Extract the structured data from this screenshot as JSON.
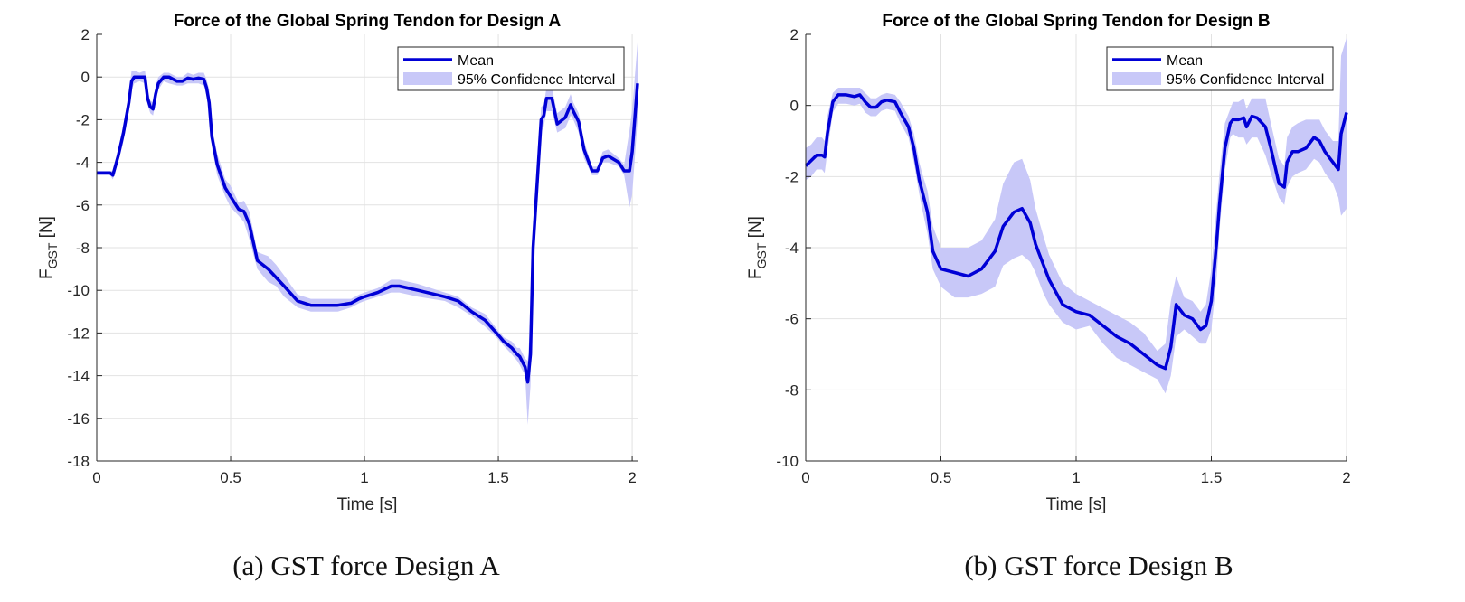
{
  "figure": {
    "caption_a": "(a) GST force Design A",
    "caption_b": "(b) GST force Design B"
  },
  "chart_data": [
    {
      "type": "line",
      "title": "Force of the Global Spring Tendon for Design A",
      "xlabel": "Time [s]",
      "ylabel_main": "F",
      "ylabel_sub": "GST",
      "ylabel_unit": " [N]",
      "xlim": [
        0,
        2.02
      ],
      "ylim": [
        -18,
        2
      ],
      "xticks": [
        0,
        0.5,
        1,
        1.5,
        2
      ],
      "xtick_labels": [
        "0",
        "0.5",
        "1",
        "1.5",
        "2"
      ],
      "yticks": [
        2,
        0,
        -2,
        -4,
        -6,
        -8,
        -10,
        -12,
        -14,
        -16,
        -18
      ],
      "ytick_labels": [
        "2",
        "0",
        "-2",
        "-4",
        "-6",
        "-8",
        "-10",
        "-12",
        "-14",
        "-16",
        "-18"
      ],
      "grid": true,
      "legend": {
        "position": "top-right",
        "entries": [
          "Mean",
          "95% Confidence Interval"
        ]
      },
      "colors": {
        "mean": "#0000d6",
        "ci": "#c8c8f8"
      },
      "series": [
        {
          "name": "Mean",
          "x": [
            0,
            0.05,
            0.06,
            0.08,
            0.1,
            0.12,
            0.13,
            0.14,
            0.16,
            0.18,
            0.19,
            0.2,
            0.21,
            0.22,
            0.23,
            0.25,
            0.27,
            0.3,
            0.32,
            0.34,
            0.36,
            0.38,
            0.4,
            0.41,
            0.42,
            0.43,
            0.45,
            0.48,
            0.5,
            0.53,
            0.55,
            0.57,
            0.6,
            0.62,
            0.64,
            0.67,
            0.7,
            0.75,
            0.8,
            0.85,
            0.9,
            0.95,
            0.98,
            1.0,
            1.05,
            1.1,
            1.13,
            1.2,
            1.3,
            1.35,
            1.4,
            1.45,
            1.5,
            1.52,
            1.55,
            1.57,
            1.58,
            1.6,
            1.61,
            1.62,
            1.63,
            1.66,
            1.67,
            1.68,
            1.7,
            1.72,
            1.75,
            1.77,
            1.78,
            1.8,
            1.82,
            1.85,
            1.87,
            1.89,
            1.91,
            1.95,
            1.97,
            1.99,
            2.0,
            2.02
          ],
          "y": [
            -4.5,
            -4.5,
            -4.6,
            -3.7,
            -2.6,
            -1.2,
            -0.2,
            0.0,
            0.0,
            0.0,
            -1.0,
            -1.4,
            -1.5,
            -0.8,
            -0.3,
            0.0,
            0.0,
            -0.2,
            -0.2,
            -0.05,
            -0.1,
            -0.05,
            -0.1,
            -0.5,
            -1.2,
            -2.8,
            -4.1,
            -5.2,
            -5.6,
            -6.2,
            -6.3,
            -6.9,
            -8.6,
            -8.8,
            -9.0,
            -9.4,
            -9.8,
            -10.5,
            -10.7,
            -10.7,
            -10.7,
            -10.6,
            -10.4,
            -10.3,
            -10.1,
            -9.8,
            -9.8,
            -10.0,
            -10.3,
            -10.5,
            -11.0,
            -11.4,
            -12.1,
            -12.4,
            -12.7,
            -13.0,
            -13.1,
            -13.6,
            -14.3,
            -13.0,
            -8.0,
            -2.0,
            -1.8,
            -1.0,
            -1.0,
            -2.2,
            -1.9,
            -1.3,
            -1.6,
            -2.1,
            -3.4,
            -4.4,
            -4.4,
            -3.8,
            -3.7,
            -4.0,
            -4.4,
            -4.4,
            -3.5,
            -0.3
          ],
          "ci_low": [
            -4.6,
            -4.6,
            -4.8,
            -4.0,
            -3.0,
            -1.6,
            -0.6,
            -0.3,
            -0.2,
            -0.3,
            -1.3,
            -1.7,
            -1.8,
            -1.2,
            -0.6,
            -0.2,
            -0.3,
            -0.4,
            -0.4,
            -0.3,
            -0.3,
            -0.3,
            -0.4,
            -0.9,
            -1.8,
            -3.3,
            -4.6,
            -5.6,
            -6.1,
            -6.5,
            -6.8,
            -7.6,
            -9.0,
            -9.3,
            -9.6,
            -9.8,
            -10.3,
            -10.8,
            -11.0,
            -11.0,
            -11.0,
            -10.8,
            -10.6,
            -10.5,
            -10.3,
            -10.1,
            -10.1,
            -10.3,
            -10.5,
            -10.8,
            -11.2,
            -11.7,
            -12.3,
            -12.6,
            -13.0,
            -13.3,
            -13.5,
            -14.0,
            -16.3,
            -14.5,
            -9.0,
            -2.6,
            -2.3,
            -1.6,
            -1.6,
            -2.6,
            -2.4,
            -1.8,
            -2.0,
            -2.6,
            -3.8,
            -4.6,
            -4.6,
            -4.0,
            -4.0,
            -4.2,
            -4.6,
            -6.1,
            -5.5,
            -2.0
          ],
          "ci_high": [
            -4.4,
            -4.4,
            -4.4,
            -3.4,
            -2.2,
            -0.8,
            0.3,
            0.3,
            0.2,
            0.3,
            -0.6,
            -1.1,
            -1.2,
            -0.4,
            0.0,
            0.2,
            0.2,
            0.0,
            0.0,
            0.2,
            0.1,
            0.2,
            0.2,
            -0.1,
            -0.6,
            -2.3,
            -3.6,
            -4.8,
            -5.1,
            -5.9,
            -5.8,
            -6.3,
            -8.2,
            -8.3,
            -8.4,
            -8.8,
            -9.3,
            -10.2,
            -10.4,
            -10.4,
            -10.4,
            -10.4,
            -10.2,
            -10.1,
            -9.9,
            -9.5,
            -9.5,
            -9.7,
            -10.1,
            -10.3,
            -10.8,
            -11.1,
            -11.9,
            -12.2,
            -12.4,
            -12.7,
            -12.7,
            -13.2,
            -13.3,
            -11.5,
            -7.0,
            -1.4,
            -1.3,
            -0.5,
            -0.5,
            -1.7,
            -1.4,
            -0.8,
            -1.2,
            -1.7,
            -3.0,
            -4.2,
            -4.2,
            -3.5,
            -3.4,
            -3.8,
            -4.1,
            -2.5,
            -1.5,
            1.6
          ]
        }
      ]
    },
    {
      "type": "line",
      "title": "Force of the Global Spring Tendon for Design B",
      "xlabel": "Time [s]",
      "ylabel_main": "F",
      "ylabel_sub": "GST",
      "ylabel_unit": " [N]",
      "xlim": [
        0,
        2
      ],
      "ylim": [
        -10,
        2
      ],
      "xticks": [
        0,
        0.5,
        1,
        1.5,
        2
      ],
      "xtick_labels": [
        "0",
        "0.5",
        "1",
        "1.5",
        "2"
      ],
      "yticks": [
        2,
        0,
        -2,
        -4,
        -6,
        -8,
        -10
      ],
      "ytick_labels": [
        "2",
        "0",
        "-2",
        "-4",
        "-6",
        "-8",
        "-10"
      ],
      "grid": true,
      "legend": {
        "position": "top-right",
        "entries": [
          "Mean",
          "95% Confidence Interval"
        ]
      },
      "colors": {
        "mean": "#0000d6",
        "ci": "#c8c8f8"
      },
      "series": [
        {
          "name": "Mean",
          "x": [
            0,
            0.02,
            0.04,
            0.06,
            0.07,
            0.08,
            0.1,
            0.12,
            0.15,
            0.18,
            0.2,
            0.22,
            0.24,
            0.26,
            0.28,
            0.3,
            0.33,
            0.35,
            0.38,
            0.4,
            0.42,
            0.43,
            0.45,
            0.47,
            0.5,
            0.55,
            0.6,
            0.65,
            0.7,
            0.73,
            0.77,
            0.8,
            0.83,
            0.85,
            0.88,
            0.9,
            0.95,
            1.0,
            1.05,
            1.1,
            1.15,
            1.2,
            1.25,
            1.3,
            1.33,
            1.35,
            1.37,
            1.4,
            1.43,
            1.46,
            1.48,
            1.5,
            1.52,
            1.53,
            1.55,
            1.57,
            1.58,
            1.6,
            1.62,
            1.63,
            1.65,
            1.67,
            1.7,
            1.72,
            1.75,
            1.77,
            1.78,
            1.8,
            1.82,
            1.85,
            1.88,
            1.9,
            1.92,
            1.95,
            1.97,
            1.98,
            2.0
          ],
          "y": [
            -1.7,
            -1.55,
            -1.4,
            -1.4,
            -1.45,
            -0.8,
            0.1,
            0.3,
            0.3,
            0.25,
            0.3,
            0.1,
            -0.05,
            -0.05,
            0.1,
            0.15,
            0.1,
            -0.2,
            -0.6,
            -1.2,
            -2.1,
            -2.4,
            -3.0,
            -4.1,
            -4.6,
            -4.7,
            -4.8,
            -4.6,
            -4.1,
            -3.4,
            -3.0,
            -2.9,
            -3.3,
            -3.9,
            -4.5,
            -4.9,
            -5.6,
            -5.8,
            -5.9,
            -6.2,
            -6.5,
            -6.7,
            -7.0,
            -7.3,
            -7.4,
            -6.8,
            -5.6,
            -5.9,
            -6.0,
            -6.3,
            -6.2,
            -5.5,
            -3.8,
            -2.8,
            -1.2,
            -0.5,
            -0.4,
            -0.4,
            -0.35,
            -0.6,
            -0.3,
            -0.35,
            -0.6,
            -1.2,
            -2.2,
            -2.3,
            -1.6,
            -1.3,
            -1.3,
            -1.2,
            -0.9,
            -1.0,
            -1.3,
            -1.6,
            -1.8,
            -0.8,
            -0.2
          ],
          "ci_low": [
            -2.1,
            -2.0,
            -1.8,
            -1.8,
            -1.9,
            -1.3,
            -0.2,
            0.05,
            0.05,
            0.0,
            0.05,
            -0.2,
            -0.3,
            -0.3,
            -0.15,
            -0.1,
            -0.15,
            -0.5,
            -0.9,
            -1.6,
            -2.5,
            -2.9,
            -3.6,
            -4.6,
            -5.1,
            -5.4,
            -5.4,
            -5.3,
            -5.1,
            -4.5,
            -4.3,
            -4.2,
            -4.4,
            -4.7,
            -5.3,
            -5.6,
            -6.1,
            -6.3,
            -6.2,
            -6.7,
            -7.1,
            -7.3,
            -7.5,
            -7.7,
            -8.1,
            -7.6,
            -6.5,
            -6.3,
            -6.5,
            -6.7,
            -6.7,
            -6.3,
            -4.8,
            -3.5,
            -1.8,
            -0.9,
            -0.8,
            -0.9,
            -0.9,
            -1.1,
            -0.9,
            -0.9,
            -1.4,
            -1.9,
            -2.6,
            -2.8,
            -2.3,
            -2.0,
            -1.9,
            -1.8,
            -1.5,
            -1.6,
            -1.9,
            -2.2,
            -2.6,
            -3.1,
            -2.9
          ],
          "ci_high": [
            -1.2,
            -1.1,
            -0.9,
            -0.9,
            -1.0,
            -0.3,
            0.35,
            0.5,
            0.5,
            0.5,
            0.5,
            0.35,
            0.2,
            0.2,
            0.3,
            0.35,
            0.3,
            0.1,
            -0.3,
            -0.8,
            -1.6,
            -1.9,
            -2.4,
            -3.4,
            -4.0,
            -4.0,
            -4.0,
            -3.8,
            -3.2,
            -2.2,
            -1.6,
            -1.5,
            -2.1,
            -2.9,
            -3.7,
            -4.2,
            -5.0,
            -5.3,
            -5.5,
            -5.7,
            -5.9,
            -6.1,
            -6.4,
            -6.9,
            -6.7,
            -5.5,
            -4.8,
            -5.4,
            -5.5,
            -5.8,
            -5.6,
            -4.6,
            -2.8,
            -1.9,
            -0.5,
            -0.1,
            0.1,
            0.1,
            0.2,
            -0.1,
            0.2,
            0.2,
            0.2,
            -0.5,
            -1.5,
            -1.7,
            -0.9,
            -0.6,
            -0.5,
            -0.4,
            -0.4,
            -0.4,
            -0.7,
            -1.0,
            -1.0,
            1.4,
            1.9
          ]
        }
      ]
    }
  ]
}
